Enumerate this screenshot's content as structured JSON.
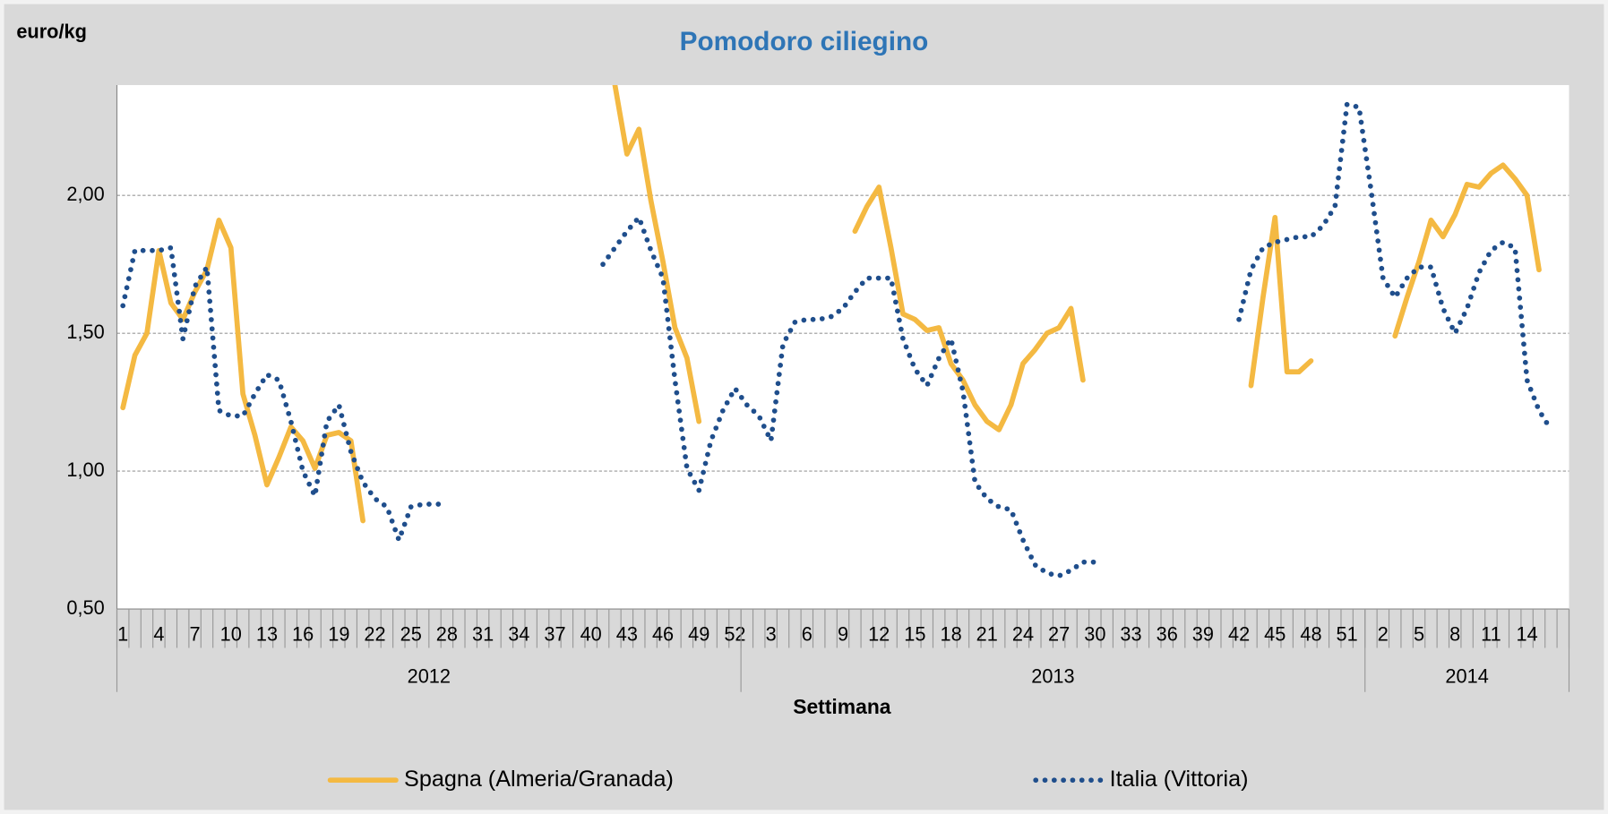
{
  "chart_data": {
    "type": "line",
    "title": "Pomodoro ciliegino",
    "y_label": "euro/kg",
    "x_label": "Settimana",
    "categories": [
      "1",
      null,
      null,
      "4",
      null,
      null,
      "7",
      null,
      null,
      "10",
      null,
      null,
      "13",
      null,
      null,
      "16",
      null,
      null,
      "19",
      null,
      null,
      "22",
      null,
      null,
      "25",
      null,
      null,
      "28",
      null,
      null,
      "31",
      null,
      null,
      "34",
      null,
      null,
      "37",
      null,
      null,
      "40",
      null,
      null,
      "43",
      null,
      null,
      "46",
      null,
      null,
      "49",
      null,
      null,
      "52",
      null,
      null,
      "3",
      null,
      null,
      "6",
      null,
      null,
      "9",
      null,
      null,
      "12",
      null,
      null,
      "15",
      null,
      null,
      "18",
      null,
      null,
      "21",
      null,
      null,
      "24",
      null,
      null,
      "27",
      null,
      null,
      "30",
      null,
      null,
      "33",
      null,
      null,
      "36",
      null,
      null,
      "39",
      null,
      null,
      "42",
      null,
      null,
      "45",
      null,
      null,
      "48",
      null,
      null,
      "51",
      null,
      null,
      "2",
      null,
      null,
      "5",
      null,
      null,
      "8",
      null,
      null,
      "11",
      null,
      null,
      "14",
      null,
      null,
      null
    ],
    "groups": [
      {
        "name": "2012",
        "weeks": 52
      },
      {
        "name": "2013",
        "weeks": 52
      },
      {
        "name": "2014",
        "weeks": 17
      }
    ],
    "series": [
      {
        "name": "Spagna (Almeria/Granada)",
        "color": "#f4b942",
        "style": "solid",
        "values": [
          1.23,
          1.42,
          1.5,
          1.8,
          1.61,
          1.55,
          1.65,
          1.73,
          1.91,
          1.81,
          1.28,
          1.13,
          0.95,
          1.05,
          1.16,
          1.11,
          1.01,
          1.13,
          1.14,
          1.11,
          0.82,
          null,
          null,
          null,
          null,
          null,
          null,
          null,
          null,
          null,
          null,
          null,
          null,
          null,
          null,
          null,
          null,
          null,
          null,
          null,
          null,
          2.4,
          2.15,
          2.24,
          1.98,
          1.76,
          1.52,
          1.41,
          1.18,
          null,
          null,
          null,
          null,
          null,
          null,
          null,
          null,
          null,
          null,
          null,
          null,
          1.87,
          1.96,
          2.03,
          1.81,
          1.57,
          1.55,
          1.51,
          1.52,
          1.39,
          1.33,
          1.24,
          1.18,
          1.15,
          1.24,
          1.39,
          1.44,
          1.5,
          1.52,
          1.59,
          1.33,
          null,
          null,
          null,
          null,
          null,
          null,
          null,
          null,
          null,
          null,
          null,
          null,
          null,
          1.31,
          1.63,
          1.92,
          1.36,
          1.36,
          1.4,
          null,
          null,
          null,
          null,
          null,
          null,
          1.49,
          1.63,
          1.76,
          1.91,
          1.85,
          1.93,
          2.04,
          2.03,
          2.08,
          2.11,
          2.06,
          2.0,
          1.73,
          null,
          null
        ]
      },
      {
        "name": "Italia (Vittoria)",
        "color": "#1f4e8c",
        "style": "dotted",
        "values": [
          1.6,
          1.8,
          1.8,
          1.8,
          1.81,
          1.48,
          1.67,
          1.74,
          1.22,
          1.2,
          1.2,
          1.28,
          1.35,
          1.33,
          1.18,
          1.0,
          0.91,
          1.18,
          1.24,
          1.07,
          0.96,
          0.9,
          0.87,
          0.75,
          0.87,
          0.88,
          0.88,
          0.88,
          null,
          null,
          null,
          null,
          null,
          null,
          null,
          null,
          null,
          null,
          null,
          null,
          1.75,
          1.81,
          1.87,
          1.92,
          1.8,
          1.7,
          1.33,
          1.01,
          0.93,
          1.11,
          1.22,
          1.3,
          1.24,
          1.2,
          1.11,
          1.46,
          1.54,
          1.55,
          1.55,
          1.56,
          1.59,
          1.65,
          1.7,
          1.7,
          1.7,
          1.48,
          1.37,
          1.31,
          1.41,
          1.48,
          1.29,
          0.96,
          0.9,
          0.87,
          0.86,
          0.75,
          0.66,
          0.63,
          0.62,
          0.64,
          0.67,
          0.67,
          null,
          null,
          null,
          null,
          null,
          null,
          null,
          null,
          null,
          null,
          null,
          1.55,
          1.73,
          1.81,
          1.83,
          1.84,
          1.85,
          1.85,
          1.89,
          1.96,
          2.33,
          2.32,
          2.02,
          1.7,
          1.63,
          1.7,
          1.74,
          1.74,
          1.59,
          1.5,
          1.59,
          1.72,
          1.8,
          1.83,
          1.81,
          1.33,
          1.22,
          1.15,
          null
        ]
      }
    ],
    "ylim": [
      0.5,
      2.4
    ],
    "yticks": [
      {
        "value": 0.5,
        "label": "0,50"
      },
      {
        "value": 1,
        "label": "1,00"
      },
      {
        "value": 1.5,
        "label": "1,50"
      },
      {
        "value": 2,
        "label": "2,00"
      }
    ],
    "grid": true,
    "legend": "bottom"
  }
}
